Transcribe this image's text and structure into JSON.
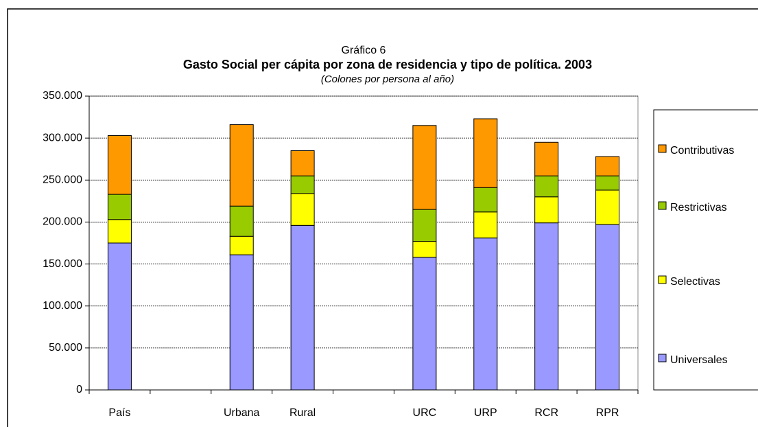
{
  "chart_data": {
    "type": "stacked_bar",
    "title": "Gráfico 6",
    "subtitle": "Gasto Social per cápita por zona de residencia y tipo de política. 2003",
    "note": "(Colones por persona al año)",
    "categories": [
      "País",
      null,
      "Urbana",
      "Rural",
      null,
      "URC",
      "URP",
      "RCR",
      "RPR"
    ],
    "series": [
      {
        "name": "Universales",
        "color": "#9999ff",
        "values": [
          175000,
          null,
          161000,
          196000,
          null,
          158000,
          181000,
          199000,
          197000
        ]
      },
      {
        "name": "Selectivas",
        "color": "#ffff00",
        "values": [
          28000,
          null,
          22000,
          38000,
          null,
          19000,
          31000,
          31000,
          41000
        ]
      },
      {
        "name": "Restrictivas",
        "color": "#99cc00",
        "values": [
          30000,
          null,
          36000,
          21000,
          null,
          38000,
          29000,
          25000,
          17000
        ]
      },
      {
        "name": "Contributivas",
        "color": "#ff9900",
        "values": [
          70000,
          null,
          97000,
          30000,
          null,
          100000,
          82000,
          40000,
          23000
        ]
      }
    ],
    "ylim": [
      0,
      350000
    ],
    "yticks": [
      0,
      {
        "value": 50000,
        "label": "50.000"
      },
      {
        "value": 100000,
        "label": "100.000"
      },
      {
        "value": 150000,
        "label": "150.000"
      },
      {
        "value": 200000,
        "label": "200.000"
      },
      {
        "value": 250000,
        "label": "250.000"
      },
      {
        "value": 300000,
        "label": "300.000"
      },
      {
        "value": 350000,
        "label": "350.000"
      }
    ],
    "grid": true,
    "legend": "right"
  }
}
